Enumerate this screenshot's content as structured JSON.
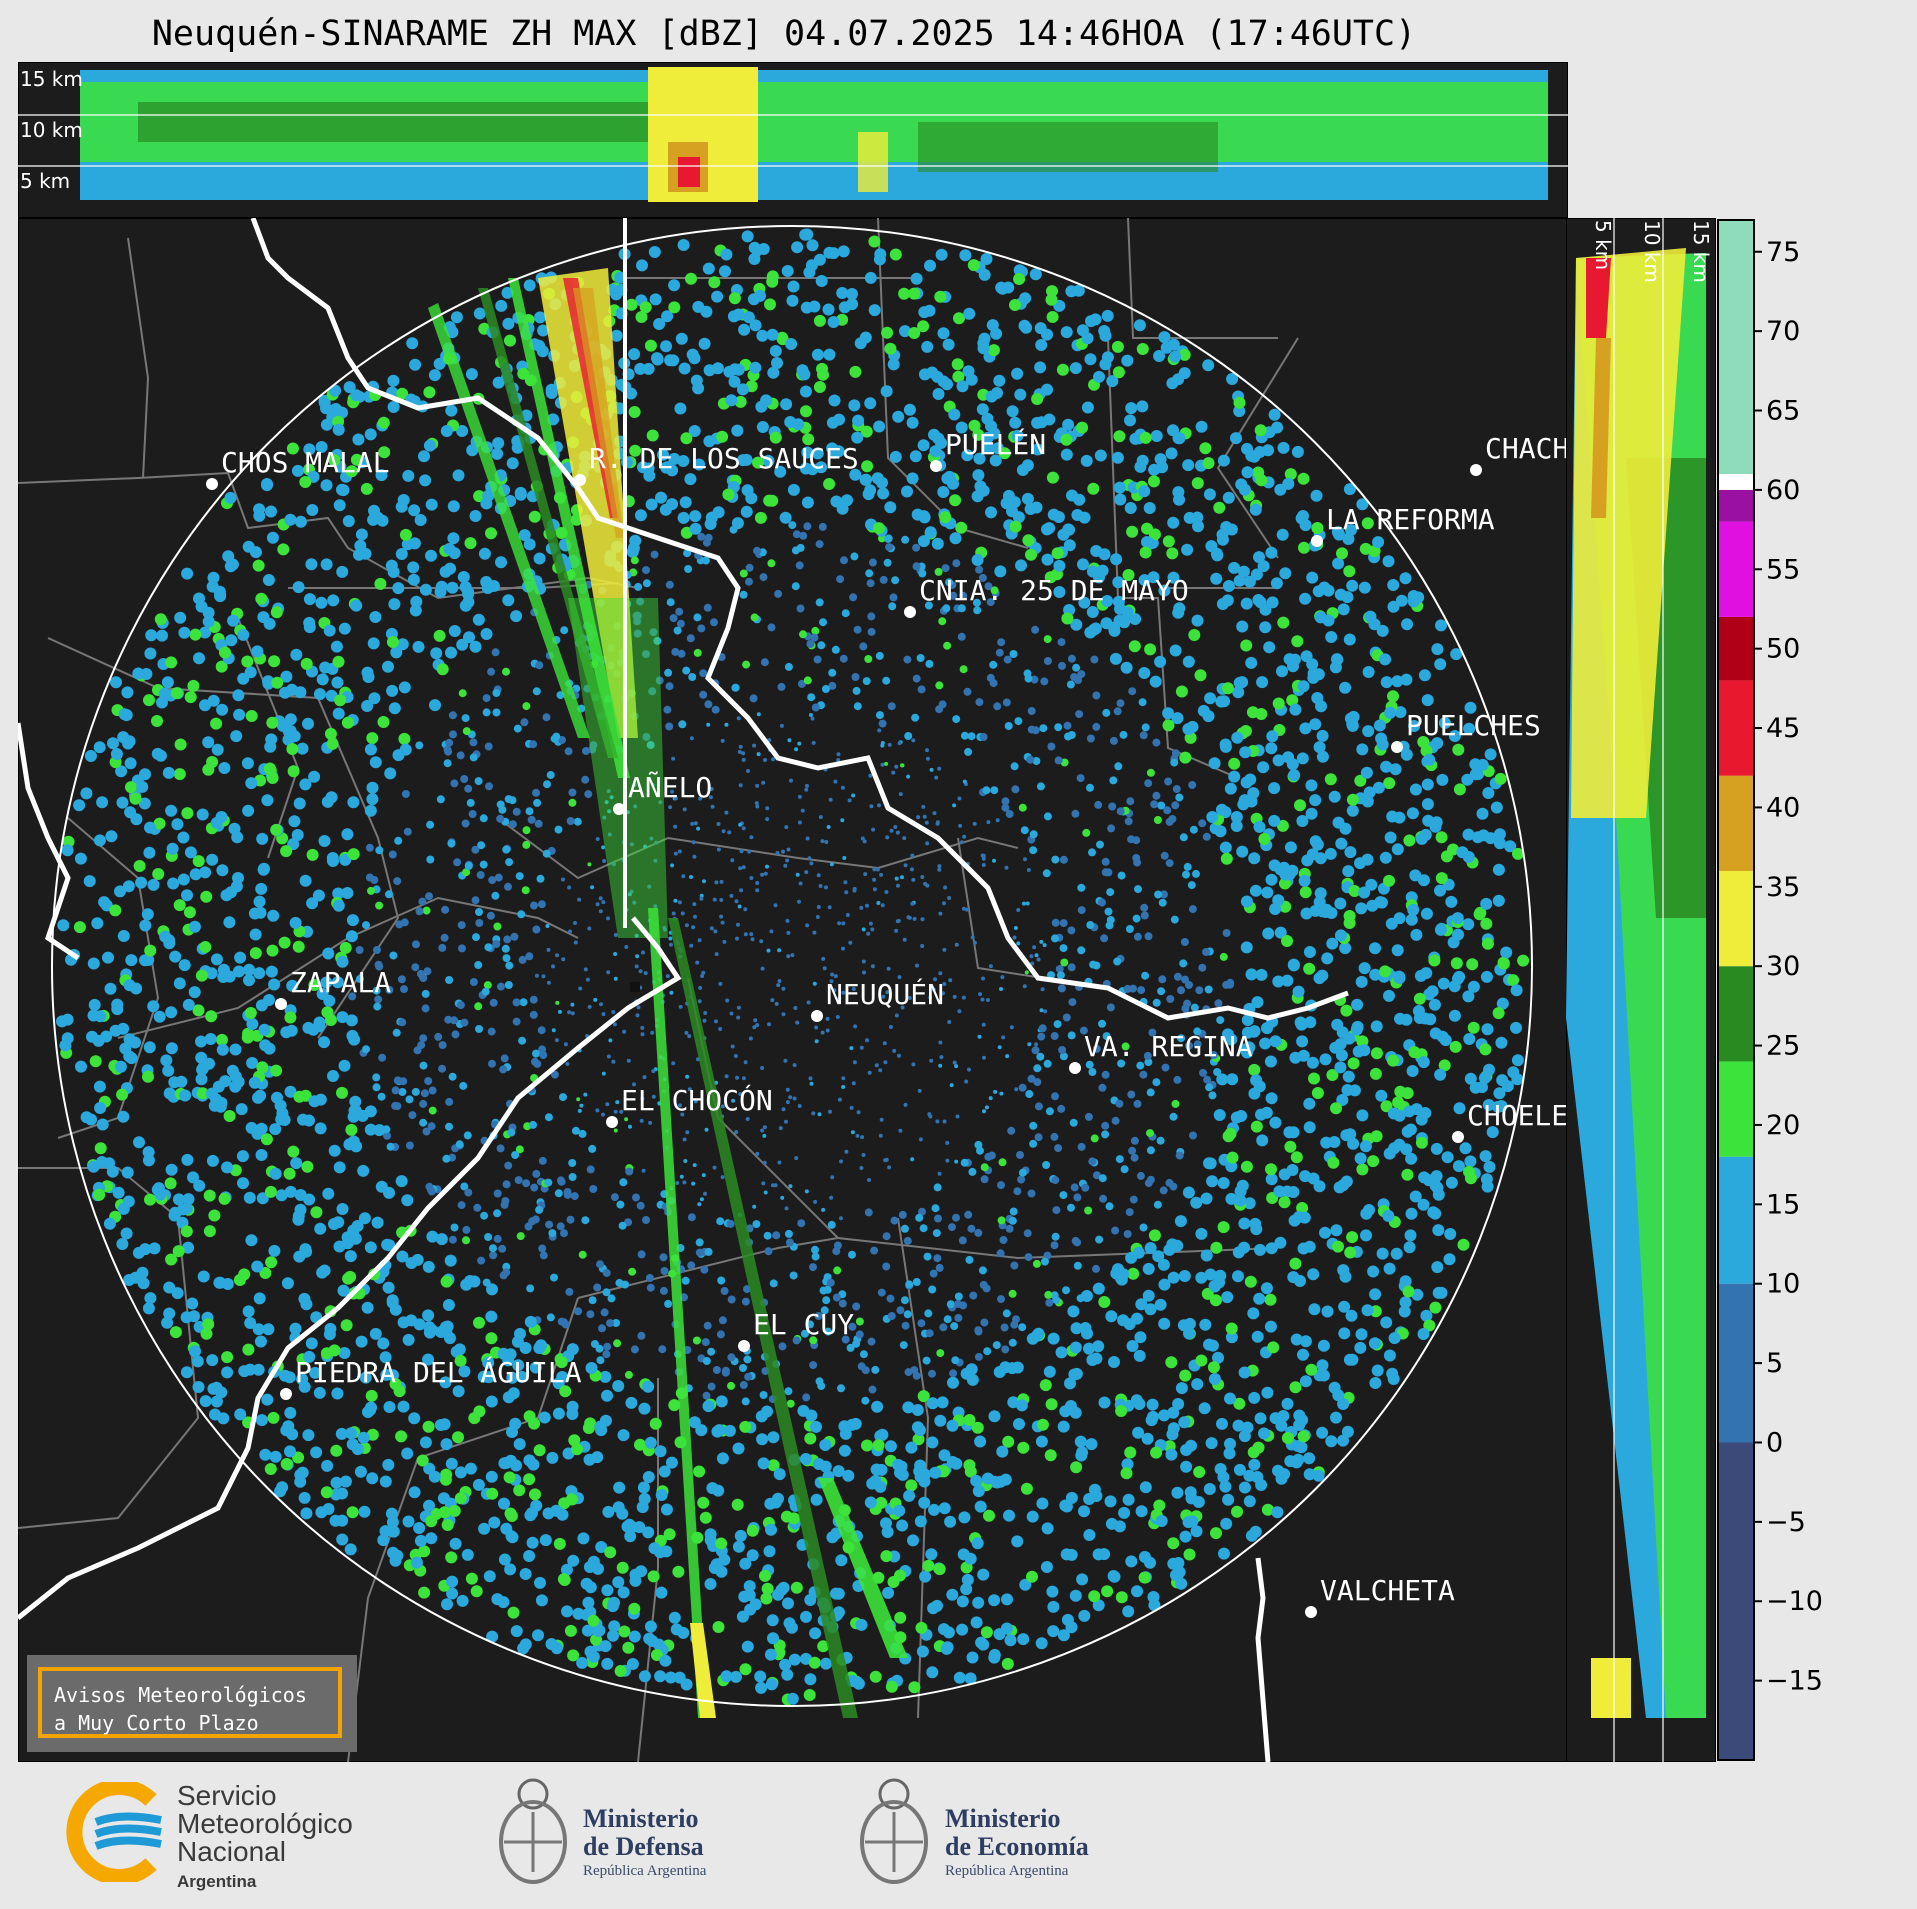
{
  "title": "Neuquén-SINARAME ZH MAX [dBZ] 04.07.2025 14:46HOA (17:46UTC)",
  "height_labels_top": [
    "15 km",
    "10 km",
    "5 km"
  ],
  "height_labels_right": [
    "5 km",
    "10 km",
    "15 km"
  ],
  "cities": [
    {
      "name": "CHOS MALAL"
    },
    {
      "name": "R. DE LOS SAUCES"
    },
    {
      "name": "PUELÉN"
    },
    {
      "name": "CHACH"
    },
    {
      "name": "LA REFORMA"
    },
    {
      "name": "CNIA. 25 DE MAYO"
    },
    {
      "name": "PUELCHES"
    },
    {
      "name": "AÑELO"
    },
    {
      "name": "ZAPALA"
    },
    {
      "name": "NEUQUÉN"
    },
    {
      "name": "VA. REGINA"
    },
    {
      "name": "EL CHOCÓN"
    },
    {
      "name": "CHOELE"
    },
    {
      "name": "EL CUY"
    },
    {
      "name": "PIEDRA DEL ÁGUILA"
    },
    {
      "name": "VALCHETA"
    }
  ],
  "colorbar": {
    "unit": "dBZ",
    "tick_labels": [
      "75",
      "70",
      "65",
      "60",
      "55",
      "50",
      "45",
      "40",
      "35",
      "30",
      "25",
      "20",
      "15",
      "10",
      "5",
      "0",
      "−5",
      "−10",
      "−15"
    ],
    "range": [
      -20,
      77
    ],
    "bands": [
      {
        "from": -20,
        "to": 0,
        "color": "#3b4a78"
      },
      {
        "from": 0,
        "to": 10,
        "color": "#3273b0"
      },
      {
        "from": 10,
        "to": 18,
        "color": "#2ba8dc"
      },
      {
        "from": 18,
        "to": 24,
        "color": "#3ce33a"
      },
      {
        "from": 24,
        "to": 30,
        "color": "#2a8a22"
      },
      {
        "from": 30,
        "to": 36,
        "color": "#f0ec3a"
      },
      {
        "from": 36,
        "to": 42,
        "color": "#d6a020"
      },
      {
        "from": 42,
        "to": 48,
        "color": "#e81830"
      },
      {
        "from": 48,
        "to": 52,
        "color": "#b00018"
      },
      {
        "from": 52,
        "to": 58,
        "color": "#e010e0"
      },
      {
        "from": 58,
        "to": 60,
        "color": "#9a10a0"
      },
      {
        "from": 60,
        "to": 61,
        "color": "#ffffff"
      },
      {
        "from": 61,
        "to": 77,
        "color": "#8fdcbc"
      }
    ]
  },
  "warning": {
    "line1": "Avisos Meteorológicos",
    "line2": "a Muy Corto Plazo"
  },
  "logos": {
    "smn": {
      "line1": "Servicio",
      "line2": "Meteorológico",
      "line3": "Nacional",
      "country": "Argentina"
    },
    "defensa": {
      "line1": "Ministerio",
      "line2": "de Defensa",
      "line3": "República Argentina"
    },
    "economia": {
      "line1": "Ministerio",
      "line2": "de Economía",
      "line3": "República Argentina"
    }
  }
}
